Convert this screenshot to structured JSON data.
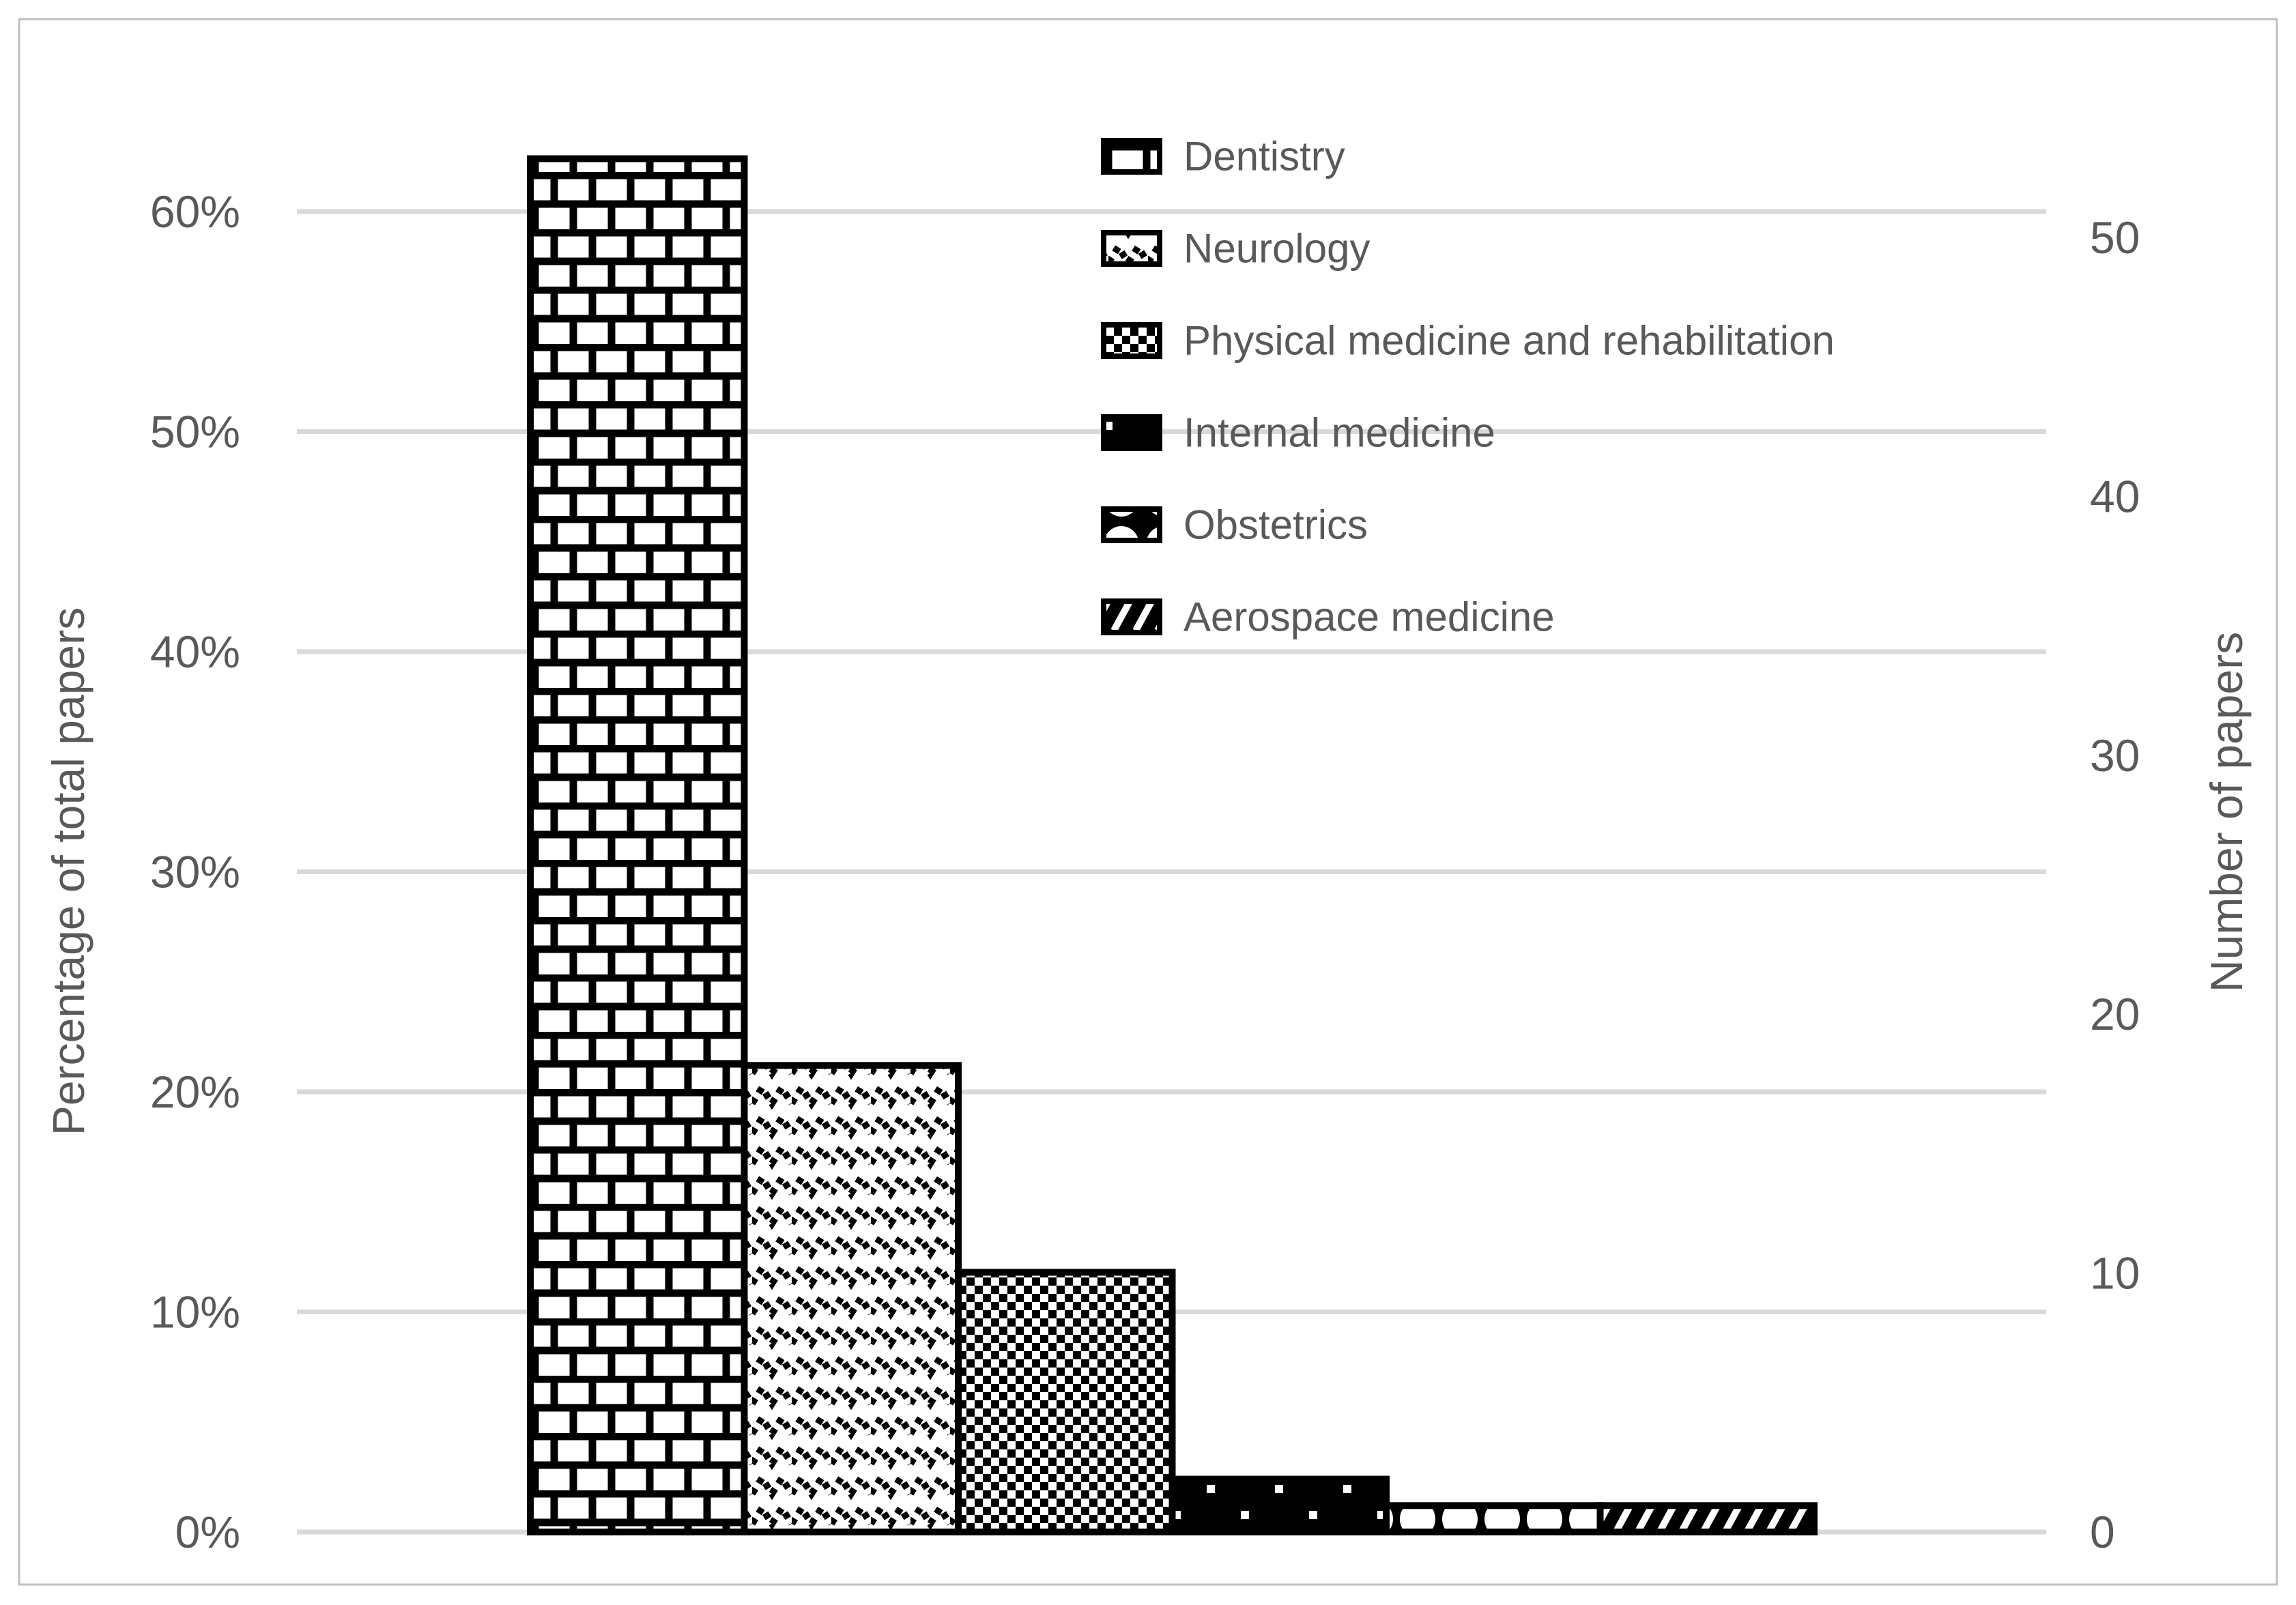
{
  "chart_data": {
    "type": "bar",
    "categories": [
      "Dentistry",
      "Neurology",
      "Physical medicine and rehabilitation",
      "Internal medicine",
      "Obstetrics",
      "Aerospace medicine"
    ],
    "series": [
      {
        "name": "Percentage of total papers",
        "values": [
          62.4,
          21.2,
          11.8,
          2.4,
          1.2,
          1.2
        ]
      },
      {
        "name": "Number of papers",
        "values": [
          53,
          18,
          10,
          2,
          1,
          1
        ]
      }
    ],
    "values_percent": [
      62.4,
      21.2,
      11.8,
      2.4,
      1.2,
      1.2
    ],
    "values_papers": [
      53,
      18,
      10,
      2,
      1,
      1
    ],
    "title": "",
    "xlabel": "",
    "ylabel_left": "Percentage of total papers",
    "ylabel_right": "Number of papers",
    "yticks_left": [
      "0%",
      "10%",
      "20%",
      "30%",
      "40%",
      "50%",
      "60%"
    ],
    "yticks_right": [
      "0",
      "10",
      "20",
      "30",
      "40",
      "50"
    ],
    "ylim_left_percent": [
      0,
      65
    ],
    "ylim_right_papers": [
      0,
      55
    ],
    "grid": "horizontal",
    "legend_position": "inside-top-center",
    "bar_patterns": [
      "brick",
      "zigzag-wave-dotted",
      "checkerboard",
      "black-small-white-dots",
      "black-white-circles",
      "black-white-diagonal-stripes"
    ],
    "colors": {
      "bar_stroke": "#000000",
      "bar_background": "#ffffff",
      "text": "#595959",
      "gridline": "#D9D9D9",
      "figure_border": "#BFBFBF"
    }
  }
}
